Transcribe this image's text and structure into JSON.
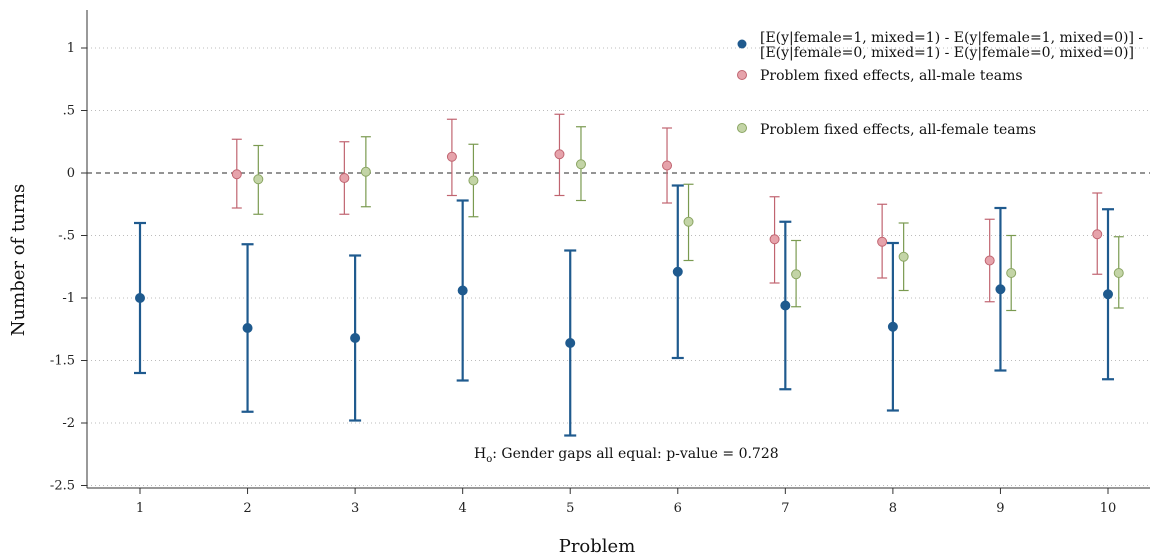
{
  "chart_data": {
    "type": "scatter",
    "title": "",
    "xlabel": "Problem",
    "ylabel": "Number of turns",
    "xlim": [
      0.3,
      10.7
    ],
    "ylim": [
      -2.6,
      1.3
    ],
    "categories": [
      "1",
      "2",
      "3",
      "4",
      "5",
      "6",
      "7",
      "8",
      "9",
      "10"
    ],
    "yticks": [
      1,
      0.5,
      0,
      -0.5,
      -1,
      -1.5,
      -2,
      -2.5
    ],
    "ytick_labels": [
      "1",
      ".5",
      "0",
      "-.5",
      "-1",
      "-1.5",
      "-2",
      "-2.5"
    ],
    "grid": true,
    "reference_line": 0,
    "legend_position": "top-right",
    "series": [
      {
        "name": "[E(y|female=1, mixed=1) - E(y|female=1, mixed=0)] -",
        "name_line2": "[E(y|female=0, mixed=1) - E(y|female=0, mixed=0)]",
        "color": "#1f5a8e",
        "offset": 0,
        "points": [
          {
            "x": 1,
            "y": -1.0,
            "lo": -1.6,
            "hi": -0.4
          },
          {
            "x": 2,
            "y": -1.24,
            "lo": -1.91,
            "hi": -0.57
          },
          {
            "x": 3,
            "y": -1.32,
            "lo": -1.98,
            "hi": -0.66
          },
          {
            "x": 4,
            "y": -0.94,
            "lo": -1.66,
            "hi": -0.22
          },
          {
            "x": 5,
            "y": -1.36,
            "lo": -2.1,
            "hi": -0.62
          },
          {
            "x": 6,
            "y": -0.79,
            "lo": -1.48,
            "hi": -0.1
          },
          {
            "x": 7,
            "y": -1.06,
            "lo": -1.73,
            "hi": -0.39
          },
          {
            "x": 8,
            "y": -1.23,
            "lo": -1.9,
            "hi": -0.56
          },
          {
            "x": 9,
            "y": -0.93,
            "lo": -1.58,
            "hi": -0.28
          },
          {
            "x": 10,
            "y": -0.97,
            "lo": -1.65,
            "hi": -0.29
          }
        ]
      },
      {
        "name": "Problem fixed effects, all-male teams",
        "color": "#c06470",
        "offset": -0.1,
        "points": [
          {
            "x": 2,
            "y": -0.01,
            "lo": -0.28,
            "hi": 0.27
          },
          {
            "x": 3,
            "y": -0.04,
            "lo": -0.33,
            "hi": 0.25
          },
          {
            "x": 4,
            "y": 0.13,
            "lo": -0.18,
            "hi": 0.43
          },
          {
            "x": 5,
            "y": 0.15,
            "lo": -0.18,
            "hi": 0.47
          },
          {
            "x": 6,
            "y": 0.06,
            "lo": -0.24,
            "hi": 0.36
          },
          {
            "x": 7,
            "y": -0.53,
            "lo": -0.88,
            "hi": -0.19
          },
          {
            "x": 8,
            "y": -0.55,
            "lo": -0.84,
            "hi": -0.25
          },
          {
            "x": 9,
            "y": -0.7,
            "lo": -1.03,
            "hi": -0.37
          },
          {
            "x": 10,
            "y": -0.49,
            "lo": -0.81,
            "hi": -0.16
          }
        ]
      },
      {
        "name": "Problem fixed effects, all-female teams",
        "color": "#7a9a50",
        "offset": 0.1,
        "points": [
          {
            "x": 2,
            "y": -0.05,
            "lo": -0.33,
            "hi": 0.22
          },
          {
            "x": 3,
            "y": 0.01,
            "lo": -0.27,
            "hi": 0.29
          },
          {
            "x": 4,
            "y": -0.06,
            "lo": -0.35,
            "hi": 0.23
          },
          {
            "x": 5,
            "y": 0.07,
            "lo": -0.22,
            "hi": 0.37
          },
          {
            "x": 6,
            "y": -0.39,
            "lo": -0.7,
            "hi": -0.09
          },
          {
            "x": 7,
            "y": -0.81,
            "lo": -1.07,
            "hi": -0.54
          },
          {
            "x": 8,
            "y": -0.67,
            "lo": -0.94,
            "hi": -0.4
          },
          {
            "x": 9,
            "y": -0.8,
            "lo": -1.1,
            "hi": -0.5
          },
          {
            "x": 10,
            "y": -0.8,
            "lo": -1.08,
            "hi": -0.51
          }
        ]
      }
    ],
    "annotation": {
      "prefix": "H",
      "subscript": "o",
      "text": ": Gender gaps all equal: p-value = 0.728"
    }
  }
}
